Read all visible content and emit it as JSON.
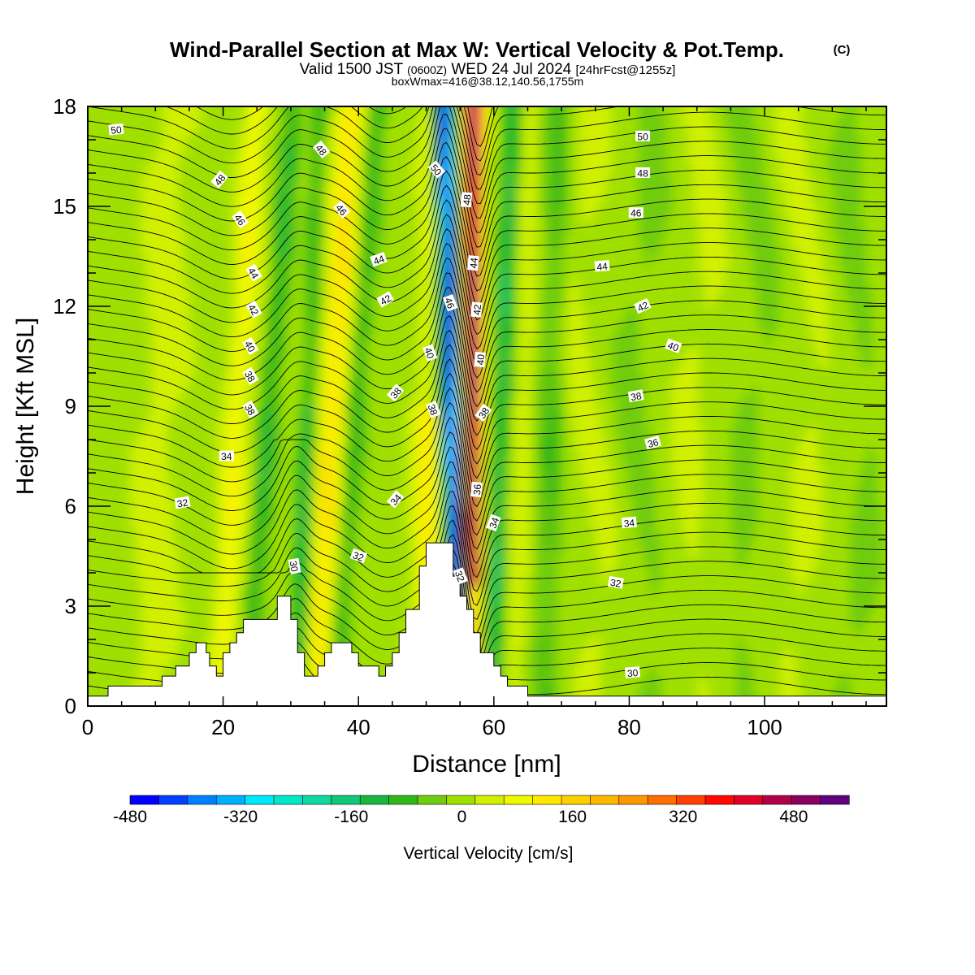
{
  "chart_data": {
    "type": "heatmap",
    "title": "Wind-Parallel Section at Max W: Vertical Velocity & Pot.Temp.",
    "title_mark": "(C)",
    "subtitle": {
      "part1": "Valid 1500 JST",
      "part2": "(0600Z)",
      "part3": "WED 24 Jul 2024",
      "part4": "[24hrFcst@1255z]"
    },
    "subtitle2": "boxWmax=416@38.12,140.56,1755m",
    "xlabel": "Distance [nm]",
    "ylabel": "Height [Kft MSL]",
    "xlim": [
      0,
      118
    ],
    "ylim": [
      0,
      18
    ],
    "x_ticks": [
      "0",
      "20",
      "40",
      "60",
      "80",
      "100"
    ],
    "x_tick_values": [
      0,
      20,
      40,
      60,
      80,
      100
    ],
    "y_ticks": [
      "0",
      "3",
      "6",
      "9",
      "12",
      "15",
      "18"
    ],
    "y_tick_values": [
      0,
      3,
      6,
      9,
      12,
      15,
      18
    ],
    "colorbar": {
      "label": "Vertical Velocity [cm/s]",
      "min": -480,
      "max": 560,
      "ticks": [
        "-480",
        "-320",
        "-160",
        "0",
        "160",
        "320",
        "480"
      ],
      "tick_values": [
        -480,
        -320,
        -160,
        0,
        160,
        320,
        480
      ],
      "colors": [
        "#0000ff",
        "#0040ff",
        "#0080ff",
        "#00b0ff",
        "#00e8ff",
        "#00e8c8",
        "#10d8a0",
        "#10c878",
        "#18b840",
        "#30b818",
        "#70cc10",
        "#a0e000",
        "#d0f000",
        "#f0f800",
        "#ffea00",
        "#ffd000",
        "#ffb800",
        "#ff9800",
        "#ff7000",
        "#ff4000",
        "#ff0800",
        "#e00028",
        "#b00048",
        "#880060",
        "#600080"
      ]
    },
    "terrain": [
      [
        0,
        0.3
      ],
      [
        3,
        0.3
      ],
      [
        3,
        0.6
      ],
      [
        11,
        0.6
      ],
      [
        11,
        0.9
      ],
      [
        13,
        0.9
      ],
      [
        13,
        1.2
      ],
      [
        15,
        1.2
      ],
      [
        15,
        1.6
      ],
      [
        16,
        1.6
      ],
      [
        16,
        1.9
      ],
      [
        17.5,
        1.9
      ],
      [
        17.5,
        1.6
      ],
      [
        18,
        1.6
      ],
      [
        18,
        1.2
      ],
      [
        19,
        1.2
      ],
      [
        19,
        0.9
      ],
      [
        20,
        0.9
      ],
      [
        20,
        1.6
      ],
      [
        21,
        1.6
      ],
      [
        21,
        1.9
      ],
      [
        22,
        1.9
      ],
      [
        22,
        2.2
      ],
      [
        23,
        2.2
      ],
      [
        23,
        2.6
      ],
      [
        28,
        2.6
      ],
      [
        28,
        3.3
      ],
      [
        30,
        3.3
      ],
      [
        30,
        2.6
      ],
      [
        31,
        2.6
      ],
      [
        31,
        1.6
      ],
      [
        32,
        1.6
      ],
      [
        32,
        0.9
      ],
      [
        34,
        0.9
      ],
      [
        34,
        1.2
      ],
      [
        35,
        1.2
      ],
      [
        35,
        1.6
      ],
      [
        36,
        1.6
      ],
      [
        36,
        1.9
      ],
      [
        39,
        1.9
      ],
      [
        39,
        1.6
      ],
      [
        40,
        1.6
      ],
      [
        40,
        1.2
      ],
      [
        43,
        1.2
      ],
      [
        43,
        0.9
      ],
      [
        44,
        0.9
      ],
      [
        44,
        1.2
      ],
      [
        45,
        1.2
      ],
      [
        45,
        1.6
      ],
      [
        46,
        1.6
      ],
      [
        46,
        2.2
      ],
      [
        47,
        2.2
      ],
      [
        47,
        2.9
      ],
      [
        49,
        2.9
      ],
      [
        49,
        4.2
      ],
      [
        50,
        4.2
      ],
      [
        50,
        4.9
      ],
      [
        54,
        4.9
      ],
      [
        54,
        3.9
      ],
      [
        55,
        3.9
      ],
      [
        55,
        3.3
      ],
      [
        56,
        3.3
      ],
      [
        56,
        2.9
      ],
      [
        57,
        2.9
      ],
      [
        57,
        2.2
      ],
      [
        58,
        2.2
      ],
      [
        58,
        1.6
      ],
      [
        60,
        1.6
      ],
      [
        60,
        1.2
      ],
      [
        61,
        1.2
      ],
      [
        61,
        0.9
      ],
      [
        62,
        0.9
      ],
      [
        62,
        0.6
      ],
      [
        65,
        0.6
      ],
      [
        65,
        0.3
      ],
      [
        118,
        0.3
      ]
    ],
    "contour_levels": [
      30,
      32,
      34,
      36,
      38,
      40,
      42,
      44,
      46,
      48,
      50
    ],
    "contour_labels": [
      {
        "text": "50",
        "x": 4.2,
        "y": 17.3,
        "rot": -5
      },
      {
        "text": "48",
        "x": 19.5,
        "y": 15.8,
        "rot": -50
      },
      {
        "text": "46",
        "x": 22.5,
        "y": 14.6,
        "rot": 55
      },
      {
        "text": "44",
        "x": 24.5,
        "y": 13.0,
        "rot": 60
      },
      {
        "text": "42",
        "x": 24.5,
        "y": 11.9,
        "rot": 60
      },
      {
        "text": "40",
        "x": 24.0,
        "y": 10.8,
        "rot": 60
      },
      {
        "text": "38",
        "x": 24.0,
        "y": 9.9,
        "rot": 60
      },
      {
        "text": "38",
        "x": 24.0,
        "y": 8.9,
        "rot": 60
      },
      {
        "text": "34",
        "x": 20.5,
        "y": 7.5,
        "rot": 0
      },
      {
        "text": "32",
        "x": 14.0,
        "y": 6.1,
        "rot": -10
      },
      {
        "text": "30",
        "x": 30.5,
        "y": 4.2,
        "rot": 80
      },
      {
        "text": "48",
        "x": 34.5,
        "y": 16.7,
        "rot": 50
      },
      {
        "text": "46",
        "x": 37.5,
        "y": 14.9,
        "rot": 50
      },
      {
        "text": "44",
        "x": 43.0,
        "y": 13.4,
        "rot": -20
      },
      {
        "text": "42",
        "x": 44.0,
        "y": 12.2,
        "rot": -30
      },
      {
        "text": "38",
        "x": 45.5,
        "y": 9.4,
        "rot": -50
      },
      {
        "text": "34",
        "x": 45.5,
        "y": 6.2,
        "rot": -50
      },
      {
        "text": "32",
        "x": 40.0,
        "y": 4.5,
        "rot": 20
      },
      {
        "text": "50",
        "x": 51.5,
        "y": 16.1,
        "rot": 50
      },
      {
        "text": "48",
        "x": 56.0,
        "y": 15.2,
        "rot": -85
      },
      {
        "text": "44",
        "x": 57.0,
        "y": 13.3,
        "rot": -85
      },
      {
        "text": "46",
        "x": 53.5,
        "y": 12.1,
        "rot": 70
      },
      {
        "text": "42",
        "x": 57.5,
        "y": 11.9,
        "rot": -85
      },
      {
        "text": "40",
        "x": 50.5,
        "y": 10.6,
        "rot": 70
      },
      {
        "text": "40",
        "x": 58.0,
        "y": 10.4,
        "rot": -85
      },
      {
        "text": "38",
        "x": 51.0,
        "y": 8.9,
        "rot": 70
      },
      {
        "text": "38",
        "x": 58.5,
        "y": 8.8,
        "rot": -55
      },
      {
        "text": "36",
        "x": 57.5,
        "y": 6.5,
        "rot": -85
      },
      {
        "text": "34",
        "x": 60.0,
        "y": 5.5,
        "rot": -70
      },
      {
        "text": "32",
        "x": 55.0,
        "y": 3.9,
        "rot": 70
      },
      {
        "text": "50",
        "x": 82.0,
        "y": 17.1,
        "rot": 0
      },
      {
        "text": "48",
        "x": 82.0,
        "y": 16.0,
        "rot": 0
      },
      {
        "text": "46",
        "x": 81.0,
        "y": 14.8,
        "rot": 0
      },
      {
        "text": "44",
        "x": 76.0,
        "y": 13.2,
        "rot": -5
      },
      {
        "text": "42",
        "x": 82.0,
        "y": 12.0,
        "rot": -25
      },
      {
        "text": "40",
        "x": 86.5,
        "y": 10.8,
        "rot": 20
      },
      {
        "text": "38",
        "x": 81.0,
        "y": 9.3,
        "rot": -10
      },
      {
        "text": "36",
        "x": 83.5,
        "y": 7.9,
        "rot": -15
      },
      {
        "text": "34",
        "x": 80.0,
        "y": 5.5,
        "rot": -5
      },
      {
        "text": "32",
        "x": 78.0,
        "y": 3.7,
        "rot": 10
      },
      {
        "text": "30",
        "x": 80.5,
        "y": 1.0,
        "rot": -5
      }
    ]
  }
}
